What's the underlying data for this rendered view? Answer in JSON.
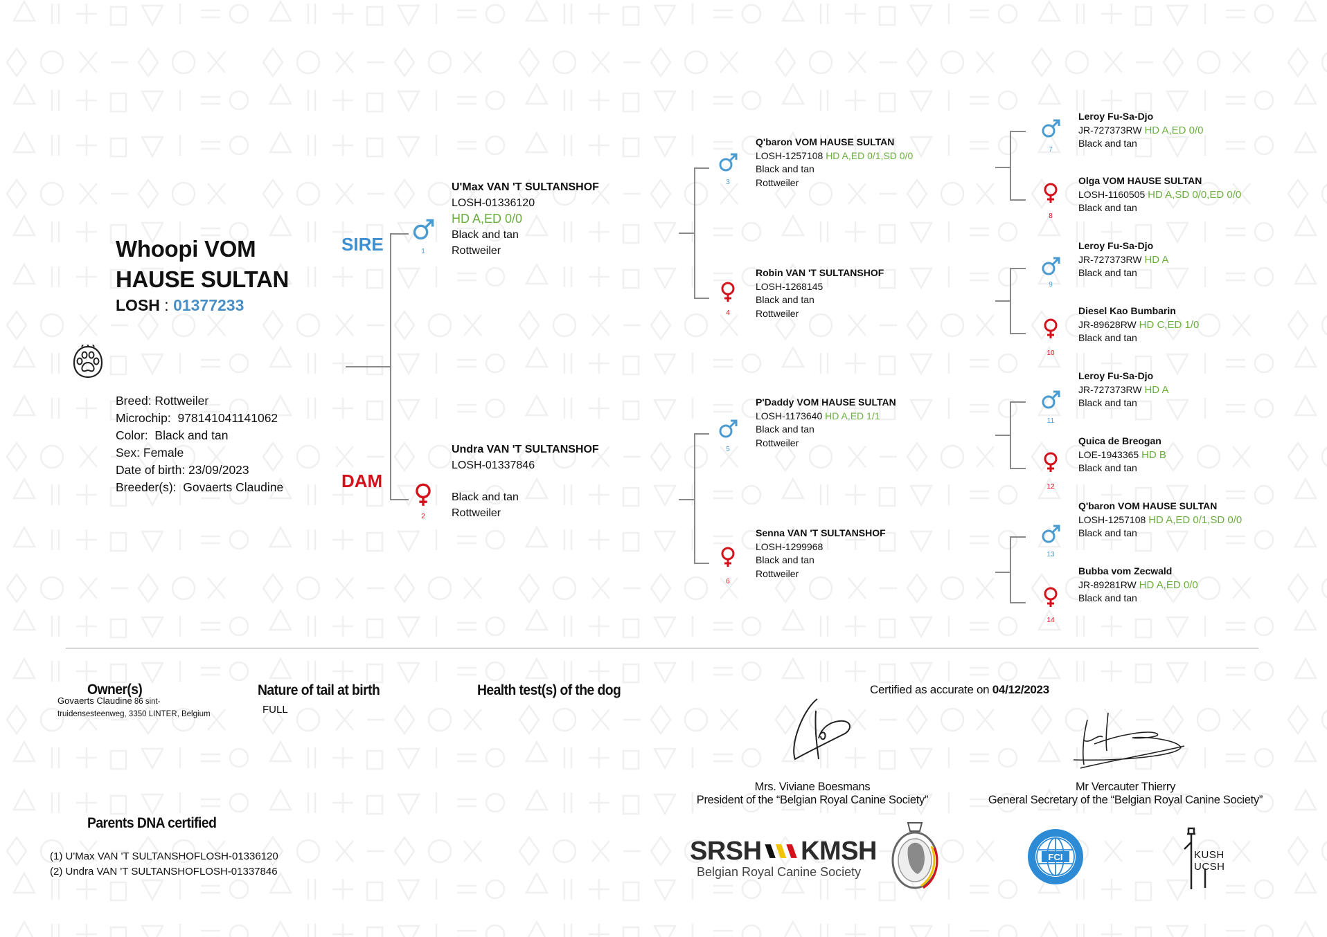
{
  "dog": {
    "name_line1": "Whoopi VOM",
    "name_line2": "HAUSE SULTAN",
    "losh_label": "LOSH",
    "losh_sep": " : ",
    "losh_number": "01377233",
    "info": [
      "Breed: Rottweiler",
      "Microchip:  978141041141062",
      "Color:  Black and tan",
      "Sex: Female",
      "Date of birth: 23/09/2023",
      "Breeder(s):  Govaerts Claudine"
    ]
  },
  "labels": {
    "sire": "SIRE",
    "dam": "DAM"
  },
  "colors": {
    "male": "#4a9bd1",
    "female": "#d4121c",
    "health": "#6aaf3d",
    "sire": "#3d8fd1",
    "dam": "#d4121c"
  },
  "ancestors": [
    {
      "num": "1",
      "sex": "male",
      "name": "U'Max VAN 'T SULTANSHOF",
      "reg": "LOSH-01336120",
      "health": "HD A,ED 0/0",
      "color": "Black and tan",
      "breed": "Rottweiler"
    },
    {
      "num": "2",
      "sex": "female",
      "name": "Undra VAN 'T SULTANSHOF",
      "reg": "LOSH-01337846",
      "health": "",
      "color": "Black and tan",
      "breed": "Rottweiler"
    },
    {
      "num": "3",
      "sex": "male",
      "name": "Q'baron VOM HAUSE SULTAN",
      "reg": "LOSH-1257108",
      "health": "HD A,ED 0/1,SD 0/0",
      "color": "Black and tan",
      "breed": "Rottweiler"
    },
    {
      "num": "4",
      "sex": "female",
      "name": "Robin VAN 'T SULTANSHOF",
      "reg": "LOSH-1268145",
      "health": "",
      "color": "Black and tan",
      "breed": "Rottweiler"
    },
    {
      "num": "5",
      "sex": "male",
      "name": "P'Daddy VOM HAUSE SULTAN",
      "reg": "LOSH-1173640",
      "health": "HD A,ED 1/1",
      "color": "Black and tan",
      "breed": "Rottweiler"
    },
    {
      "num": "6",
      "sex": "female",
      "name": "Senna VAN 'T SULTANSHOF",
      "reg": "LOSH-1299968",
      "health": "",
      "color": "Black and tan",
      "breed": "Rottweiler"
    },
    {
      "num": "7",
      "sex": "male",
      "name": "Leroy Fu-Sa-Djo",
      "reg": "JR-727373RW",
      "health": "HD A,ED 0/0",
      "color": "Black and tan"
    },
    {
      "num": "8",
      "sex": "female",
      "name": "Olga VOM HAUSE SULTAN",
      "reg": "LOSH-1160505",
      "health": "HD A,SD 0/0,ED 0/0",
      "color": "Black and tan"
    },
    {
      "num": "9",
      "sex": "male",
      "name": "Leroy Fu-Sa-Djo",
      "reg": "JR-727373RW",
      "health": "HD A",
      "color": "Black and tan"
    },
    {
      "num": "10",
      "sex": "female",
      "name": "Diesel Kao Bumbarin",
      "reg": "JR-89628RW",
      "health": "HD C,ED 1/0",
      "color": "Black and tan"
    },
    {
      "num": "11",
      "sex": "male",
      "name": "Leroy Fu-Sa-Djo",
      "reg": "JR-727373RW",
      "health": "HD A",
      "color": "Black and tan"
    },
    {
      "num": "12",
      "sex": "female",
      "name": "Quica de Breogan",
      "reg": "LOE-1943365",
      "health": "HD B",
      "color": "Black and tan"
    },
    {
      "num": "13",
      "sex": "male",
      "name": "Q'baron VOM HAUSE SULTAN",
      "reg": "LOSH-1257108",
      "health": "HD A,ED 0/1,SD 0/0",
      "color": "Black and tan"
    },
    {
      "num": "14",
      "sex": "female",
      "name": "Bubba vom Zecwald",
      "reg": "JR-89281RW",
      "health": "HD A,ED 0/0",
      "color": "Black and tan"
    }
  ],
  "footer": {
    "owner_heading": "Owner(s)",
    "owner_line1_name": "Govaerts Claudine",
    "owner_line1_addr": " 86 sint-",
    "owner_line2": "truidensesteenweg, 3350 LINTER, Belgium",
    "tail_heading": "Nature of tail at birth",
    "tail_value": "FULL",
    "health_heading": "Health test(s) of the dog",
    "dna_heading": "Parents DNA certified",
    "dna_lines": [
      "(1) U'Max VAN 'T SULTANSHOFLOSH-01336120",
      "(2) Undra VAN 'T SULTANSHOFLOSH-01337846"
    ],
    "certified_label": "Certified as accurate on ",
    "certified_date": "04/12/2023",
    "signatories": [
      {
        "name": "Mrs. Viviane Boesmans",
        "role": "President of the “Belgian Royal Canine Society”"
      },
      {
        "name": "Mr Vercauter Thierry",
        "role": "General Secretary of the “Belgian Royal Canine Society”"
      }
    ],
    "logos": {
      "srsh": "SRSH",
      "kmsh": "KMSH",
      "society": "Belgian Royal Canine Society",
      "fci": "FCI",
      "kush": "KUSH",
      "ucsh": "UCSH"
    }
  }
}
